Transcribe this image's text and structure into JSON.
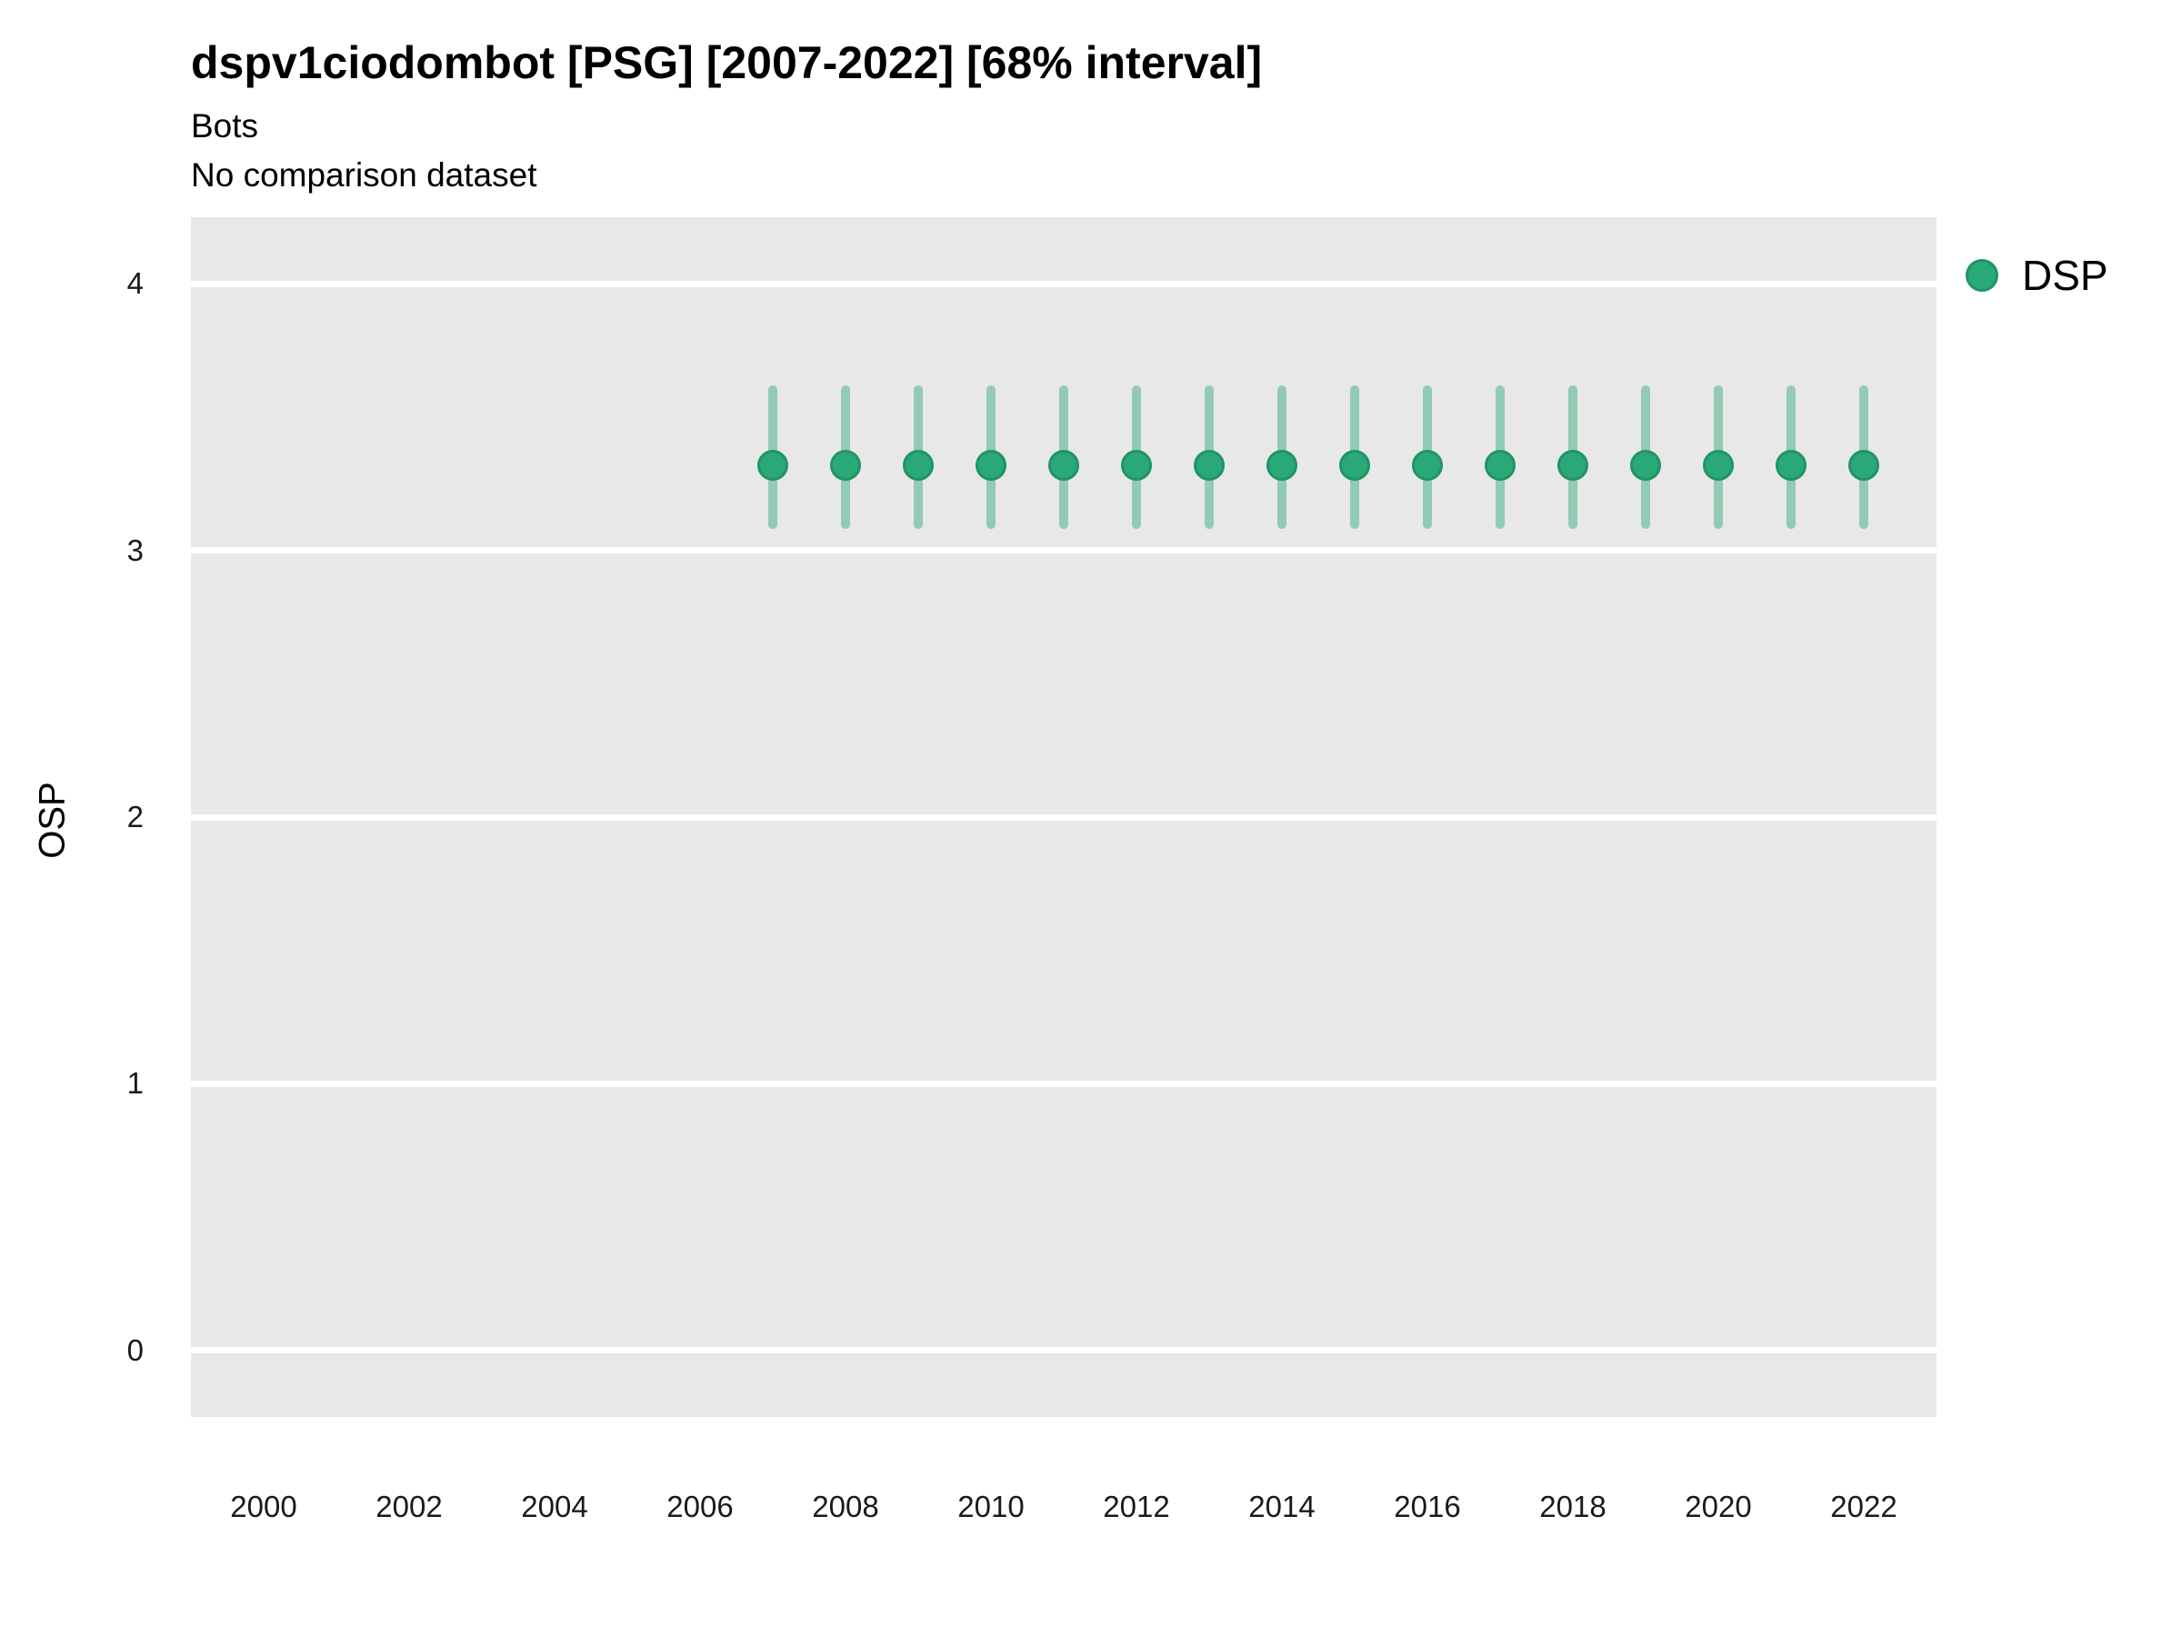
{
  "header": {
    "title": "dspv1ciodombot [PSG] [2007-2022] [68% interval]",
    "subtitle": "Bots",
    "note": "No comparison dataset"
  },
  "legend": {
    "position": "right-top",
    "items": [
      {
        "label": "DSP",
        "color": "#2aa876"
      }
    ]
  },
  "colors": {
    "point_green": "#2aa876",
    "point_border_green": "#1f9468",
    "interval_green": "rgba(42,168,118,0.45)",
    "panel_background": "#e8e8e8",
    "gridline": "#ffffff",
    "text": "#000000"
  },
  "chart_data": {
    "type": "scatter",
    "title": "dspv1ciodombot [PSG] [2007-2022] [68% interval]",
    "subtitle": "Bots",
    "annotation": "No comparison dataset",
    "interval_level": "68%",
    "xlabel": "",
    "ylabel": "OSP",
    "xlim": [
      1999,
      2023
    ],
    "ylim": [
      -0.25,
      4.25
    ],
    "x_ticks": [
      2000,
      2002,
      2004,
      2006,
      2008,
      2010,
      2012,
      2014,
      2016,
      2018,
      2020,
      2022
    ],
    "y_ticks": [
      4,
      3,
      2,
      1,
      0
    ],
    "grid": "horizontal white major gridlines on gray panel, no vertical gridlines",
    "legend_position": "right-top",
    "series": [
      {
        "name": "DSP",
        "color": "#2aa876",
        "interval_color": "rgba(42,168,118,0.45)",
        "x": [
          2007,
          2008,
          2009,
          2010,
          2011,
          2012,
          2013,
          2014,
          2015,
          2016,
          2017,
          2018,
          2019,
          2020,
          2021,
          2022
        ],
        "y": [
          3.32,
          3.32,
          3.32,
          3.32,
          3.32,
          3.32,
          3.32,
          3.32,
          3.32,
          3.32,
          3.32,
          3.32,
          3.32,
          3.32,
          3.32,
          3.32
        ],
        "y_lower": [
          3.08,
          3.08,
          3.08,
          3.08,
          3.08,
          3.08,
          3.08,
          3.08,
          3.08,
          3.08,
          3.08,
          3.08,
          3.08,
          3.08,
          3.08,
          3.08
        ],
        "y_upper": [
          3.62,
          3.62,
          3.62,
          3.62,
          3.62,
          3.62,
          3.62,
          3.62,
          3.62,
          3.62,
          3.62,
          3.62,
          3.62,
          3.62,
          3.62,
          3.62
        ]
      }
    ]
  }
}
